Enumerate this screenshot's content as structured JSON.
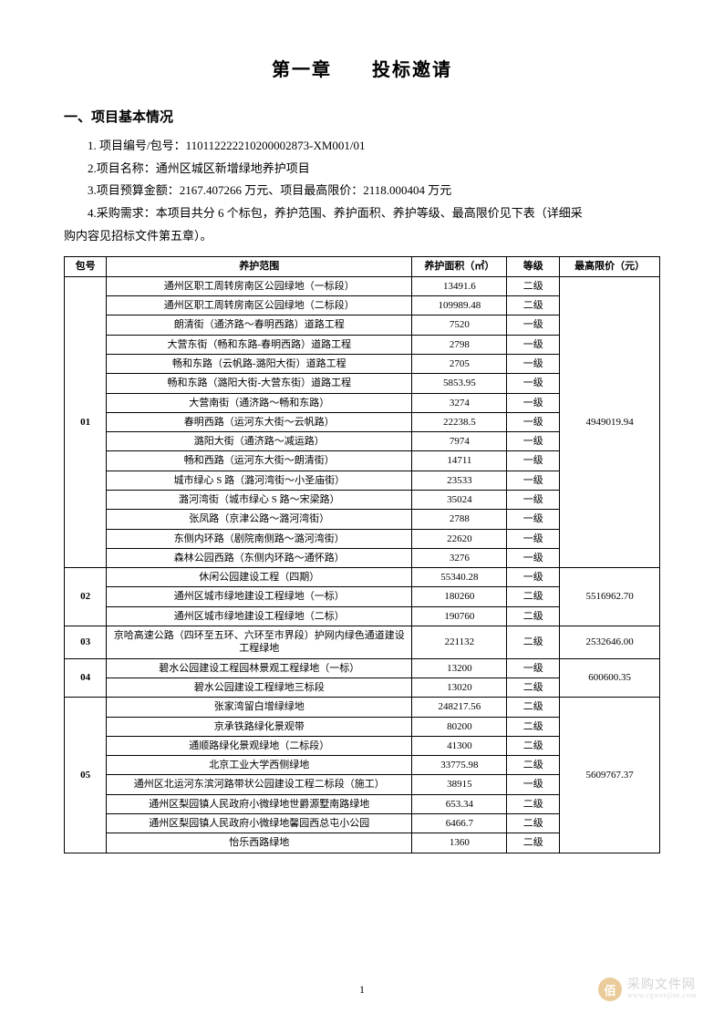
{
  "chapter_title": "第一章　　投标邀请",
  "section_heading": "一、项目基本情况",
  "info": {
    "line1": "1. 项目编号/包号：110112222210200002873-XM001/01",
    "line2": "2.项目名称：通州区城区新增绿地养护项目",
    "line3": "3.项目预算金额：2167.407266 万元、项目最高限价：2118.000404 万元",
    "line4a": "4.采购需求：本项目共分 6 个标包，养护范围、养护面积、养护等级、最高限价见下表（详细采",
    "line4b": "购内容见招标文件第五章）。"
  },
  "table": {
    "headers": {
      "pkg": "包号",
      "scope": "养护范围",
      "area": "养护面积（㎡）",
      "grade": "等级",
      "price": "最高限价（元）"
    },
    "groups": [
      {
        "pkg": "01",
        "price": "4949019.94",
        "rows": [
          {
            "scope": "通州区职工周转房南区公园绿地（一标段）",
            "area": "13491.6",
            "grade": "二级"
          },
          {
            "scope": "通州区职工周转房南区公园绿地（二标段）",
            "area": "109989.48",
            "grade": "二级"
          },
          {
            "scope": "朗清街（通济路～春明西路）道路工程",
            "area": "7520",
            "grade": "一级"
          },
          {
            "scope": "大营东街（畅和东路-春明西路）道路工程",
            "area": "2798",
            "grade": "一级"
          },
          {
            "scope": "畅和东路（云帆路-潞阳大街）道路工程",
            "area": "2705",
            "grade": "一级"
          },
          {
            "scope": "畅和东路（潞阳大街-大营东街）道路工程",
            "area": "5853.95",
            "grade": "一级"
          },
          {
            "scope": "大营南街（通济路～畅和东路）",
            "area": "3274",
            "grade": "一级"
          },
          {
            "scope": "春明西路（运河东大街～云帆路）",
            "area": "22238.5",
            "grade": "一级"
          },
          {
            "scope": "潞阳大街（通济路～减运路）",
            "area": "7974",
            "grade": "一级"
          },
          {
            "scope": "畅和西路（运河东大街～朗清街）",
            "area": "14711",
            "grade": "一级"
          },
          {
            "scope": "城市绿心 S 路（潞河湾街～小圣庙街）",
            "area": "23533",
            "grade": "一级"
          },
          {
            "scope": "潞河湾街（城市绿心 S 路～宋梁路）",
            "area": "35024",
            "grade": "一级"
          },
          {
            "scope": "张凤路（京津公路～潞河湾街）",
            "area": "2788",
            "grade": "一级"
          },
          {
            "scope": "东侧内环路（剧院南侧路～潞河湾街）",
            "area": "22620",
            "grade": "一级"
          },
          {
            "scope": "森林公园西路（东侧内环路～通怀路）",
            "area": "3276",
            "grade": "一级"
          }
        ]
      },
      {
        "pkg": "02",
        "price": "5516962.70",
        "rows": [
          {
            "scope": "休闲公园建设工程（四期）",
            "area": "55340.28",
            "grade": "一级"
          },
          {
            "scope": "通州区城市绿地建设工程绿地（一标）",
            "area": "180260",
            "grade": "二级"
          },
          {
            "scope": "通州区城市绿地建设工程绿地（二标）",
            "area": "190760",
            "grade": "二级"
          }
        ]
      },
      {
        "pkg": "03",
        "price": "2532646.00",
        "rows": [
          {
            "scope": "京哈高速公路（四环至五环、六环至市界段）护网内绿色通道建设工程绿地",
            "area": "221132",
            "grade": "二级"
          }
        ]
      },
      {
        "pkg": "04",
        "price": "600600.35",
        "rows": [
          {
            "scope": "碧水公园建设工程园林景观工程绿地（一标）",
            "area": "13200",
            "grade": "一级"
          },
          {
            "scope": "碧水公园建设工程绿地三标段",
            "area": "13020",
            "grade": "二级"
          }
        ]
      },
      {
        "pkg": "05",
        "price": "5609767.37",
        "rows": [
          {
            "scope": "张家湾留白增绿绿地",
            "area": "248217.56",
            "grade": "二级"
          },
          {
            "scope": "京承铁路绿化景观带",
            "area": "80200",
            "grade": "二级"
          },
          {
            "scope": "通顺路绿化景观绿地（二标段）",
            "area": "41300",
            "grade": "二级"
          },
          {
            "scope": "北京工业大学西侧绿地",
            "area": "33775.98",
            "grade": "二级"
          },
          {
            "scope": "通州区北运河东滨河路带状公园建设工程二标段（施工）",
            "area": "38915",
            "grade": "一级"
          },
          {
            "scope": "通州区梨园镇人民政府小微绿地世爵源墅南路绿地",
            "area": "653.34",
            "grade": "二级"
          },
          {
            "scope": "通州区梨园镇人民政府小微绿地馨园西总屯小公园",
            "area": "6466.7",
            "grade": "二级"
          },
          {
            "scope": "怡乐西路绿地",
            "area": "1360",
            "grade": "二级"
          }
        ]
      }
    ]
  },
  "page_number": "1",
  "watermark": {
    "badge": "佰",
    "text": "采购文件网",
    "sub": "www.cgwenjian.com"
  }
}
